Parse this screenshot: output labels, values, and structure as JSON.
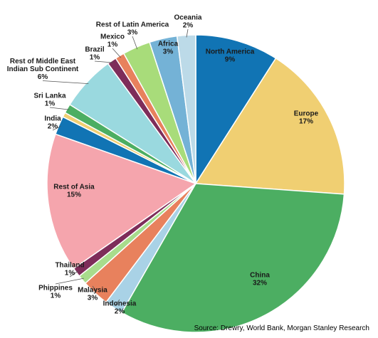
{
  "chart_data": {
    "type": "pie",
    "title": "",
    "unit": "%",
    "start_angle_deg": 0,
    "direction": "clockwise",
    "slices": [
      {
        "name": "North America",
        "value": 9,
        "label": "9%",
        "color": "#1174b4"
      },
      {
        "name": "Europe",
        "value": 17,
        "label": "17%",
        "color": "#f0cf72"
      },
      {
        "name": "China",
        "value": 32,
        "label": "32%",
        "color": "#4cae62"
      },
      {
        "name": "Indonesia",
        "value": 2,
        "label": "2%",
        "color": "#a9d2e6"
      },
      {
        "name": "Malaysia",
        "value": 3,
        "label": "3%",
        "color": "#e8815d"
      },
      {
        "name": "Phippines",
        "value": 1,
        "label": "1%",
        "color": "#a8dc8c"
      },
      {
        "name": "Thailand",
        "value": 1,
        "label": "1%",
        "color": "#7e2d5a"
      },
      {
        "name": "Rest of Asia",
        "value": 15,
        "label": "15%",
        "color": "#f5a5ad"
      },
      {
        "name": "India",
        "value": 2,
        "label": "2%",
        "color": "#1174b4"
      },
      {
        "name": "Rest of Middle East Indian Sub Continent",
        "value": 0.5,
        "label": "",
        "color": "#f0cf72"
      },
      {
        "name": "Sri Lanka",
        "value": 1,
        "label": "1%",
        "color": "#4cae62"
      },
      {
        "name": "Rest of Middle East\nIndian  Sub Continent",
        "value": 6,
        "label": "6%",
        "color": "#9ad9df"
      },
      {
        "name": "Brazil",
        "value": 1,
        "label": "1%",
        "color": "#7e2d5a"
      },
      {
        "name": "Mexico",
        "value": 1,
        "label": "1%",
        "color": "#e8815d"
      },
      {
        "name": "Rest of Latin America",
        "value": 3,
        "label": "3%",
        "color": "#a8dc7a"
      },
      {
        "name": "Africa",
        "value": 3,
        "label": "3%",
        "color": "#74b2d6"
      },
      {
        "name": "Oceania",
        "value": 2,
        "label": "2%",
        "color": "#bcdae8"
      }
    ],
    "source": "Source: Drewry, World Bank, Morgan Stanley Research"
  }
}
